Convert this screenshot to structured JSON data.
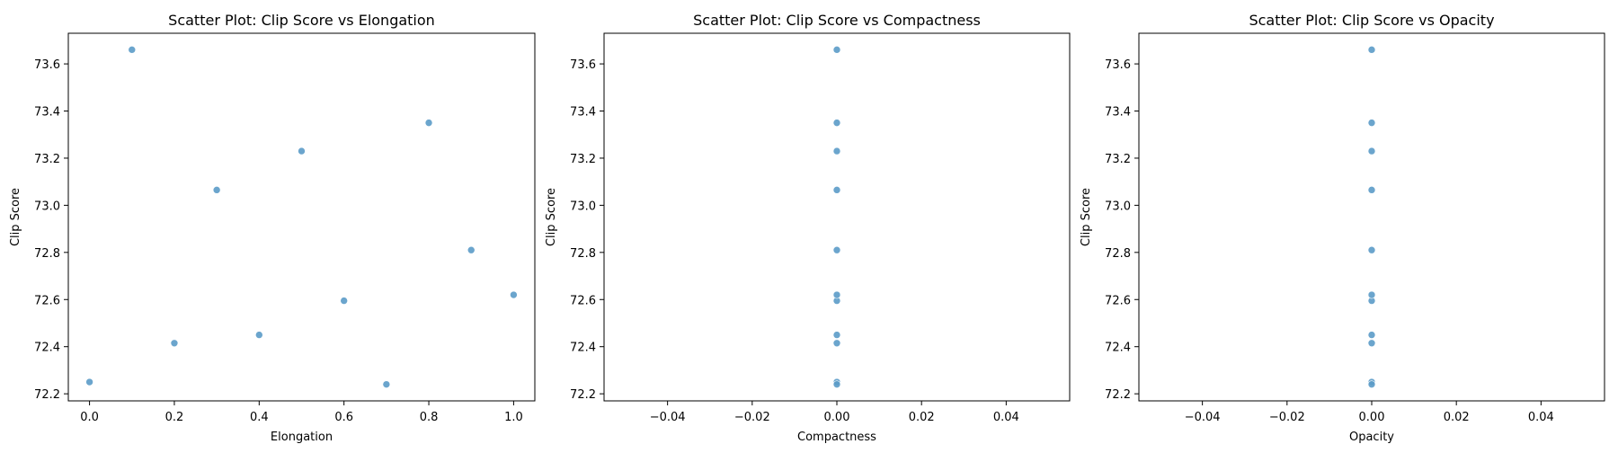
{
  "chart_data": [
    {
      "type": "scatter",
      "title": "Scatter Plot: Clip Score vs Elongation",
      "xlabel": "Elongation",
      "ylabel": "Clip Score",
      "xlim": [
        -0.05,
        1.05
      ],
      "ylim": [
        72.17,
        73.73
      ],
      "xticks": [
        0.0,
        0.2,
        0.4,
        0.6,
        0.8,
        1.0
      ],
      "xtick_labels": [
        "0.0",
        "0.2",
        "0.4",
        "0.6",
        "0.8",
        "1.0"
      ],
      "yticks": [
        72.2,
        72.4,
        72.6,
        72.8,
        73.0,
        73.2,
        73.4,
        73.6
      ],
      "ytick_labels": [
        "72.2",
        "72.4",
        "72.6",
        "72.8",
        "73.0",
        "73.2",
        "73.4",
        "73.6"
      ],
      "grid": false,
      "color": "#5b9bc8",
      "x": [
        0.0,
        0.1,
        0.2,
        0.3,
        0.4,
        0.5,
        0.6,
        0.7,
        0.8,
        0.9,
        1.0
      ],
      "y": [
        72.25,
        73.66,
        72.415,
        73.065,
        72.45,
        73.23,
        72.595,
        72.24,
        73.35,
        72.81,
        72.62
      ]
    },
    {
      "type": "scatter",
      "title": "Scatter Plot: Clip Score vs Compactness",
      "xlabel": "Compactness",
      "ylabel": "Clip Score",
      "xlim": [
        -0.055,
        0.055
      ],
      "ylim": [
        72.17,
        73.73
      ],
      "xticks": [
        -0.04,
        -0.02,
        0.0,
        0.02,
        0.04
      ],
      "xtick_labels": [
        "−0.04",
        "−0.02",
        "0.00",
        "0.02",
        "0.04"
      ],
      "yticks": [
        72.2,
        72.4,
        72.6,
        72.8,
        73.0,
        73.2,
        73.4,
        73.6
      ],
      "ytick_labels": [
        "72.2",
        "72.4",
        "72.6",
        "72.8",
        "73.0",
        "73.2",
        "73.4",
        "73.6"
      ],
      "grid": false,
      "color": "#5b9bc8",
      "x": [
        0,
        0,
        0,
        0,
        0,
        0,
        0,
        0,
        0,
        0,
        0
      ],
      "y": [
        72.25,
        73.66,
        72.415,
        73.065,
        72.45,
        73.23,
        72.595,
        72.24,
        73.35,
        72.81,
        72.62
      ]
    },
    {
      "type": "scatter",
      "title": "Scatter Plot: Clip Score vs Opacity",
      "xlabel": "Opacity",
      "ylabel": "Clip Score",
      "xlim": [
        -0.055,
        0.055
      ],
      "ylim": [
        72.17,
        73.73
      ],
      "xticks": [
        -0.04,
        -0.02,
        0.0,
        0.02,
        0.04
      ],
      "xtick_labels": [
        "−0.04",
        "−0.02",
        "0.00",
        "0.02",
        "0.04"
      ],
      "yticks": [
        72.2,
        72.4,
        72.6,
        72.8,
        73.0,
        73.2,
        73.4,
        73.6
      ],
      "ytick_labels": [
        "72.2",
        "72.4",
        "72.6",
        "72.8",
        "73.0",
        "73.2",
        "73.4",
        "73.6"
      ],
      "grid": false,
      "color": "#5b9bc8",
      "x": [
        0,
        0,
        0,
        0,
        0,
        0,
        0,
        0,
        0,
        0,
        0
      ],
      "y": [
        72.25,
        73.66,
        72.415,
        73.065,
        72.45,
        73.23,
        72.595,
        72.24,
        73.35,
        72.81,
        72.62
      ]
    }
  ]
}
